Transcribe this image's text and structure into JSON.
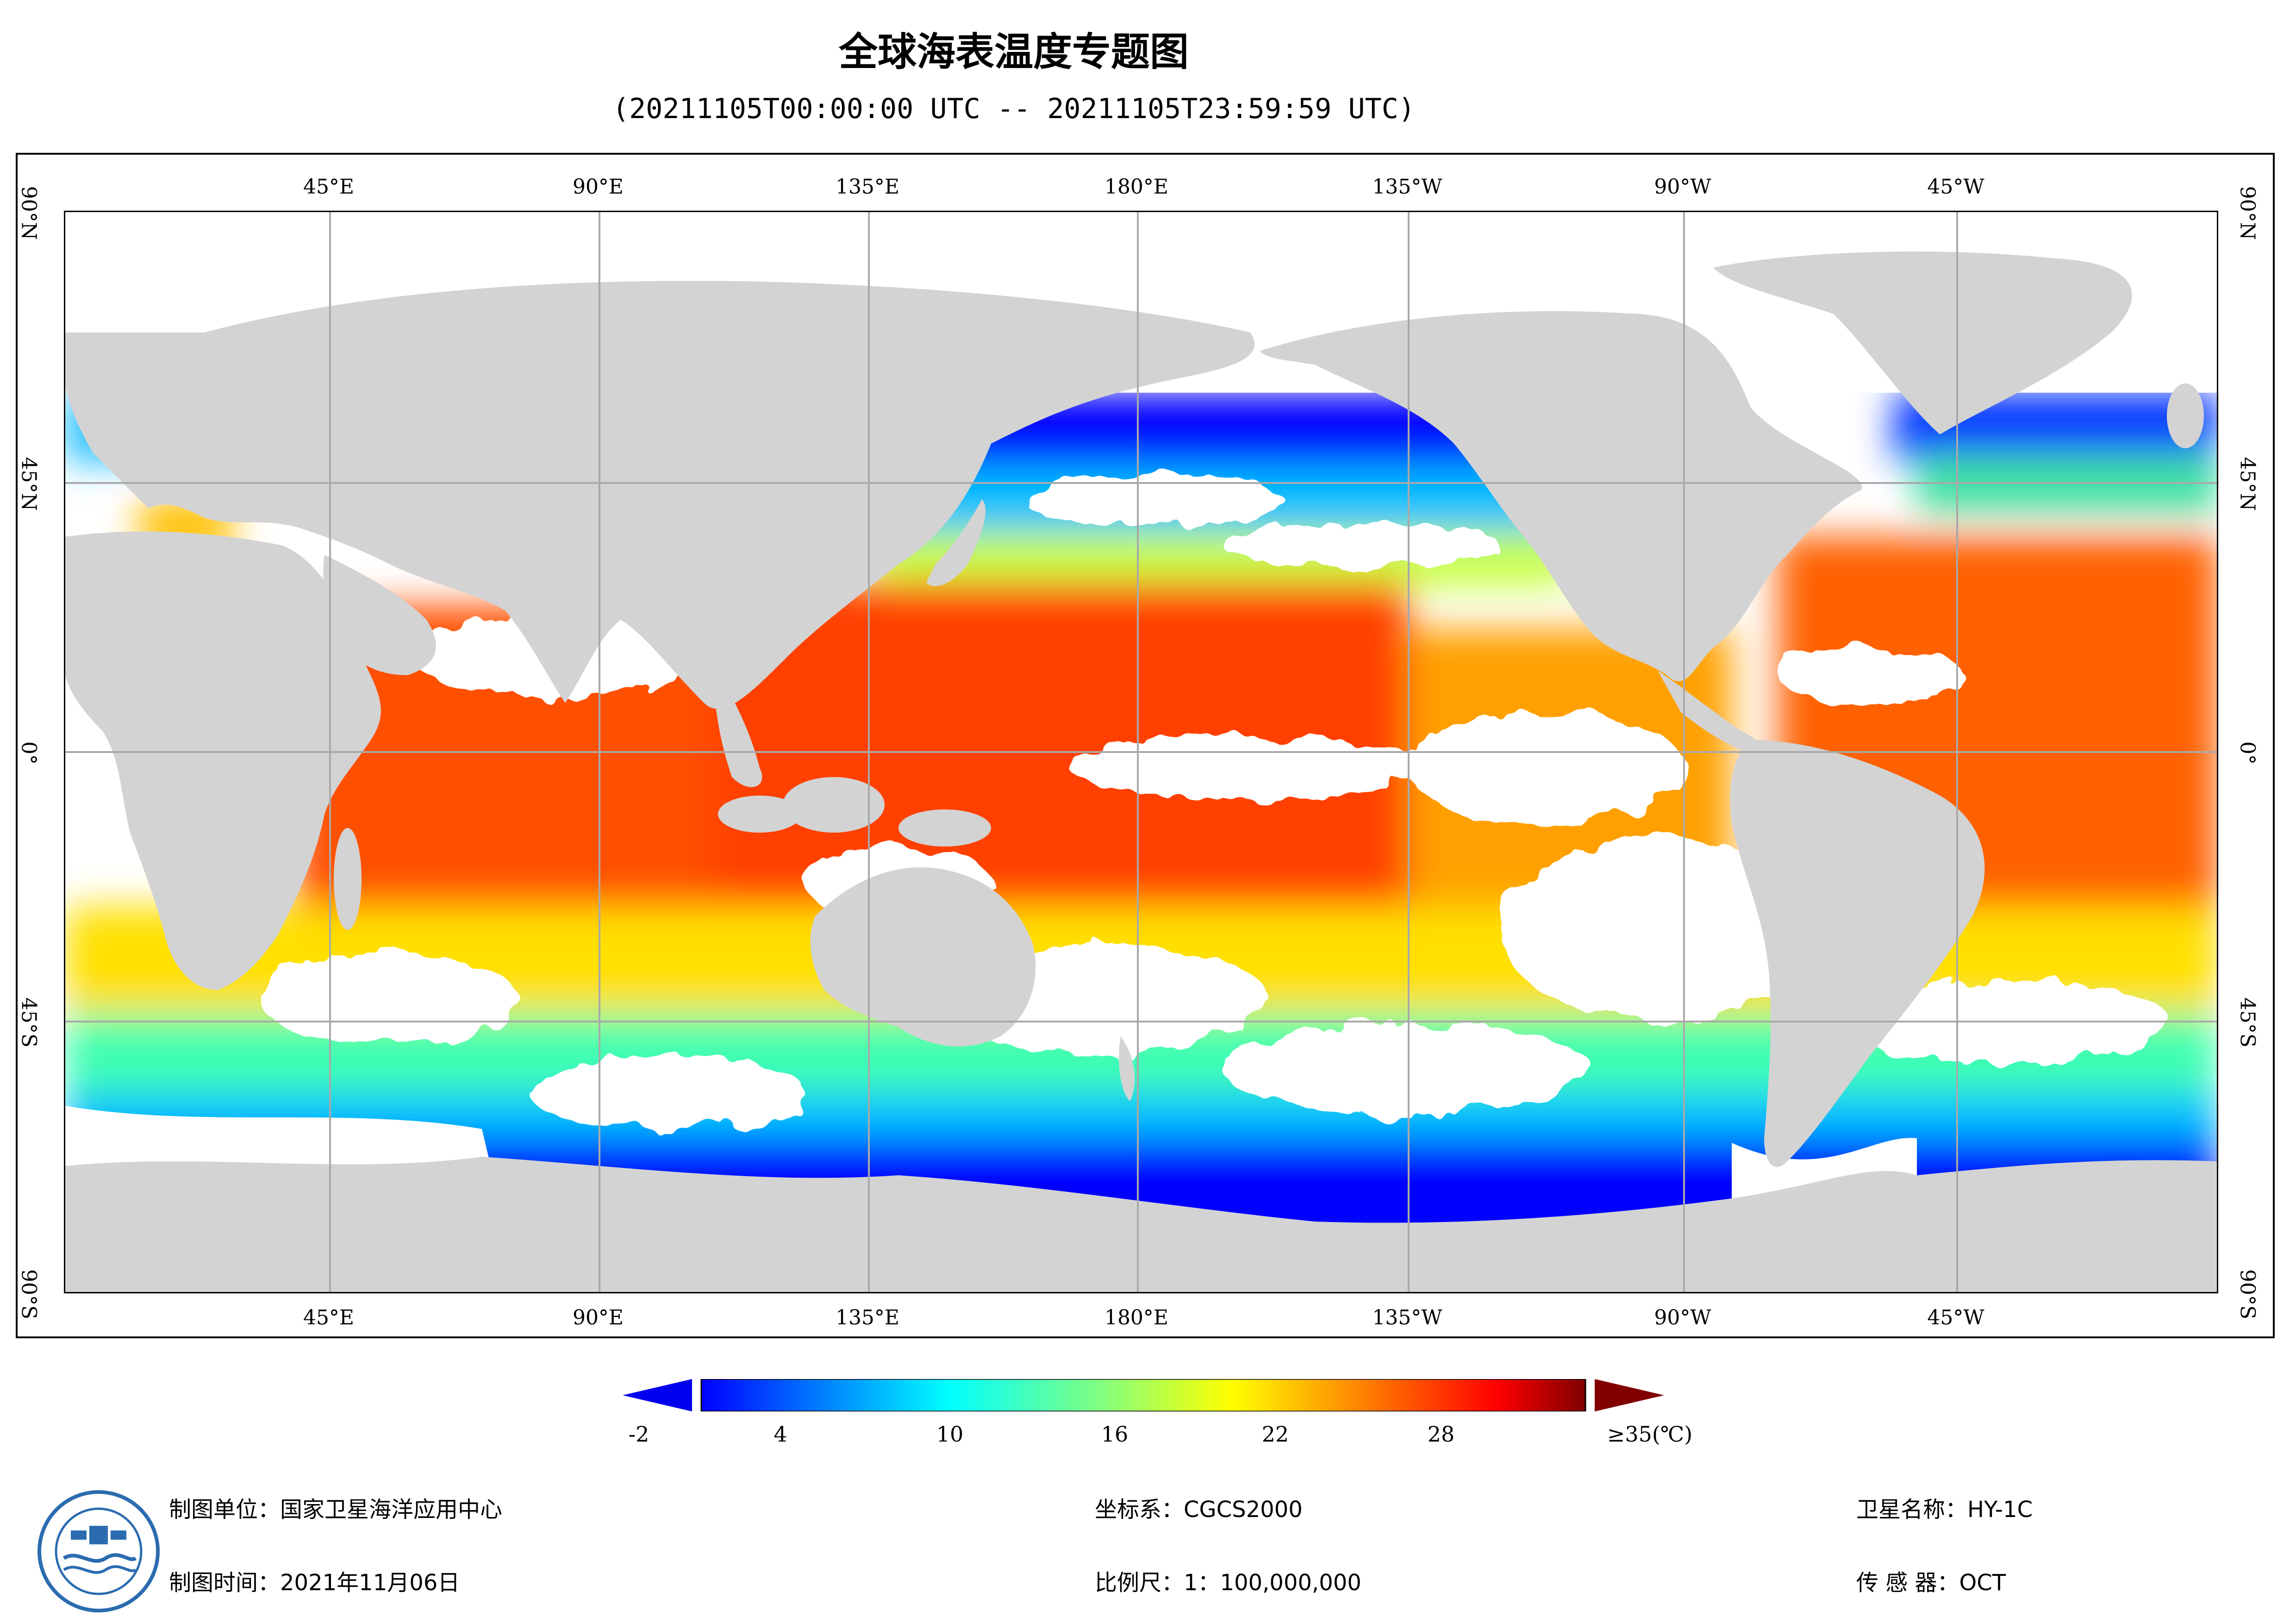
{
  "header": {
    "title": "全球海表温度专题图",
    "subtitle": "(20211105T00:00:00 UTC -- 20211105T23:59:59 UTC)"
  },
  "map": {
    "top_ticks": [
      "45°E",
      "90°E",
      "135°E",
      "180°E",
      "135°W",
      "90°W",
      "45°W"
    ],
    "bottom_ticks": [
      "45°E",
      "90°E",
      "135°E",
      "180°E",
      "135°W",
      "90°W",
      "45°W"
    ],
    "lat_ticks": [
      "90°N",
      "45°N",
      "0°",
      "45°S",
      "90°S"
    ],
    "colors": {
      "land": "#d3d3d3",
      "grid": "#a9a9a9",
      "cold": "#0000ff",
      "cool": "#00ffff",
      "mild": "#ffff00",
      "warm": "#ff6000",
      "hot": "#e00000"
    }
  },
  "colorbar": {
    "labels": [
      "-2",
      "4",
      "10",
      "16",
      "22",
      "28",
      "≥35(℃)"
    ],
    "stops": [
      "#0000ff",
      "#0070ff",
      "#00ffff",
      "#80ff80",
      "#ffff00",
      "#ff8000",
      "#ff0000",
      "#800000"
    ]
  },
  "footer": {
    "unit": "制图单位：国家卫星海洋应用中心",
    "time": "制图时间：2021年11月06日",
    "coord": "坐标系：CGCS2000",
    "scale": "比例尺：1：100,000,000",
    "satellite": "卫星名称：HY-1C",
    "sensor": "传  感  器：OCT"
  }
}
